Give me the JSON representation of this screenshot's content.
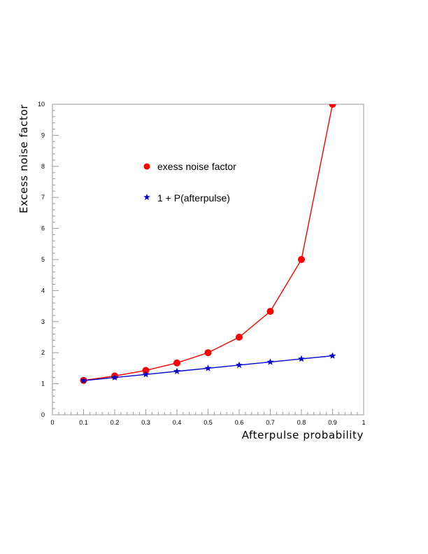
{
  "chart_data": {
    "type": "line",
    "xlabel": "Afterpulse probability",
    "ylabel": "Excess noise factor",
    "xlim": [
      0,
      1
    ],
    "ylim": [
      0,
      10
    ],
    "x_ticks": [
      "0",
      "0.1",
      "0.2",
      "0.3",
      "0.4",
      "0.5",
      "0.6",
      "0.7",
      "0.8",
      "0.9",
      "1"
    ],
    "y_ticks": [
      "0",
      "1",
      "2",
      "3",
      "4",
      "5",
      "6",
      "7",
      "8",
      "9",
      "10"
    ],
    "grid": false,
    "legend_position": "upper-left inside plot",
    "x": [
      0.1,
      0.2,
      0.3,
      0.4,
      0.5,
      0.6,
      0.7,
      0.8,
      0.9
    ],
    "series": [
      {
        "name": "exess noise factor",
        "marker": "circle",
        "color": "#ff0000",
        "values": [
          1.11,
          1.25,
          1.43,
          1.67,
          2.0,
          2.5,
          3.33,
          5.0,
          10.0
        ]
      },
      {
        "name": "1 + P(afterpulse)",
        "marker": "star",
        "color": "#0000cc",
        "values": [
          1.1,
          1.2,
          1.3,
          1.4,
          1.5,
          1.6,
          1.7,
          1.8,
          1.9
        ]
      }
    ]
  }
}
